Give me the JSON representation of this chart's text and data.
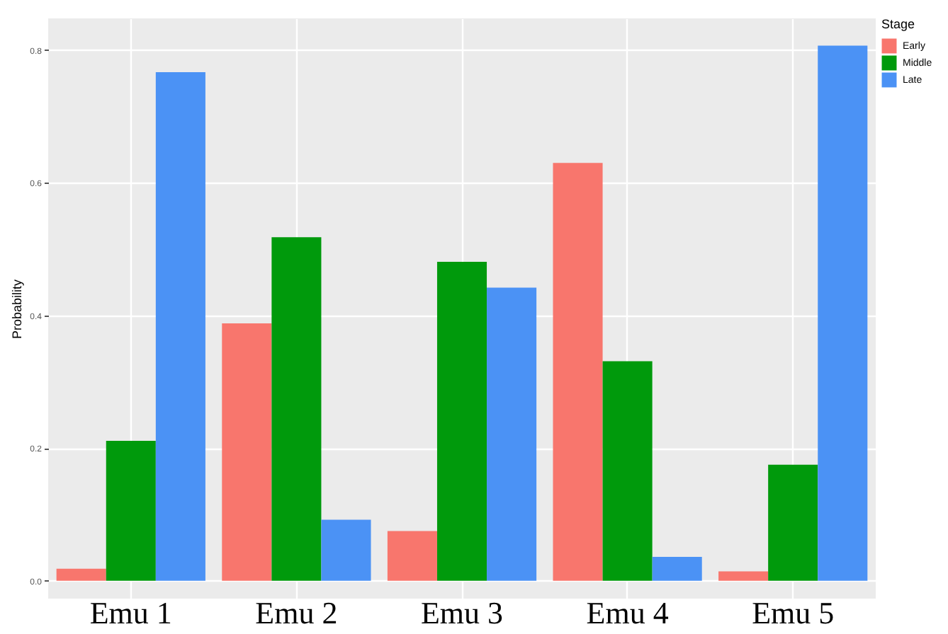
{
  "chart_data": {
    "type": "bar",
    "ylabel": "Probability",
    "legend_title": "Stage",
    "categories": [
      "Emu 1",
      "Emu 2",
      "Emu 3",
      "Emu 4",
      "Emu 5"
    ],
    "series": [
      {
        "name": "Early",
        "color": "#f8766d",
        "values": [
          0.018,
          0.388,
          0.075,
          0.63,
          0.014
        ]
      },
      {
        "name": "Middle",
        "color": "#009a0c",
        "values": [
          0.211,
          0.518,
          0.481,
          0.331,
          0.175
        ]
      },
      {
        "name": "Late",
        "color": "#4b92f5",
        "values": [
          0.767,
          0.092,
          0.442,
          0.036,
          0.807
        ]
      }
    ],
    "ylim": [
      -0.027,
      0.848
    ],
    "yticks": [
      {
        "value": 0,
        "label": "0.0"
      },
      {
        "value": 0.2,
        "label": "0.2"
      },
      {
        "value": 0.4,
        "label": "0.4"
      },
      {
        "value": 0.6,
        "label": "0.6"
      },
      {
        "value": 0.8,
        "label": "0.8"
      }
    ],
    "grid": true,
    "legend": "right"
  }
}
